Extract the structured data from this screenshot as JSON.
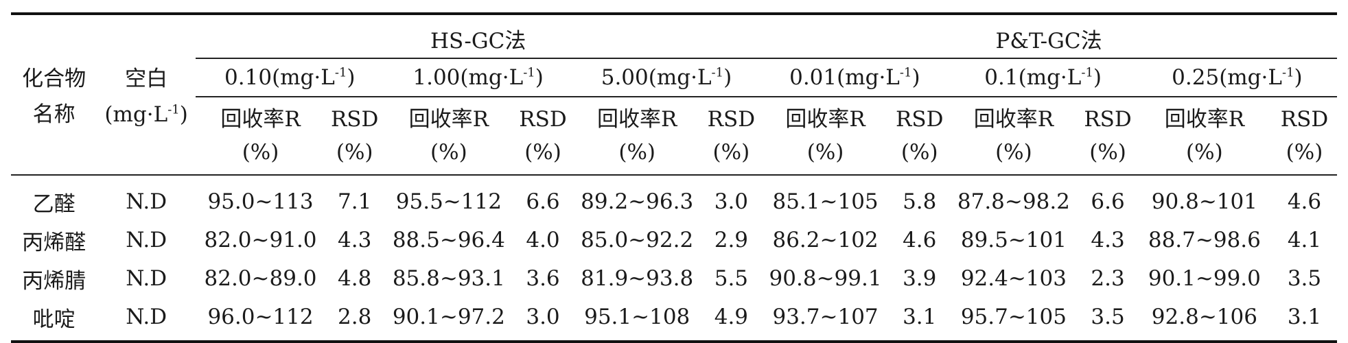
{
  "header": {
    "compound": [
      "化合物",
      "名称"
    ],
    "blank": [
      "空白",
      "(mg·L",
      "-1",
      ")"
    ],
    "groups": [
      "HS-GC法",
      "P&T-GC法"
    ],
    "concentrations": [
      {
        "value": "0.10(mg·L",
        "sup": "-1",
        "close": ")"
      },
      {
        "value": "1.00(mg·L",
        "sup": "-1",
        "close": ")"
      },
      {
        "value": "5.00(mg·L",
        "sup": "-1",
        "close": ")"
      },
      {
        "value": "0.01(mg·L",
        "sup": "-1",
        "close": ")"
      },
      {
        "value": "0.1(mg·L",
        "sup": "-1",
        "close": ")"
      },
      {
        "value": "0.25(mg·L",
        "sup": "-1",
        "close": ")"
      }
    ],
    "recovery": [
      "回收率R",
      "(%)"
    ],
    "rsd": [
      "RSD",
      "(%)"
    ]
  },
  "rows": [
    {
      "name": "乙醛",
      "blank": "N.D",
      "cells": [
        "95.0~113",
        "7.1",
        "95.5~112",
        "6.6",
        "89.2~96.3",
        "3.0",
        "85.1~105",
        "5.8",
        "87.8~98.2",
        "6.6",
        "90.8~101",
        "4.6"
      ]
    },
    {
      "name": "丙烯醛",
      "blank": "N.D",
      "cells": [
        "82.0~91.0",
        "4.3",
        "88.5~96.4",
        "4.0",
        "85.0~92.2",
        "2.9",
        "86.2~102",
        "4.6",
        "89.5~101",
        "4.3",
        "88.7~98.6",
        "4.1"
      ]
    },
    {
      "name": "丙烯腈",
      "blank": "N.D",
      "cells": [
        "82.0~89.0",
        "4.8",
        "85.8~93.1",
        "3.6",
        "81.9~93.8",
        "5.5",
        "90.8~99.1",
        "3.9",
        "92.4~103",
        "2.3",
        "90.1~99.0",
        "3.5"
      ]
    },
    {
      "name": "吡啶",
      "blank": "N.D",
      "cells": [
        "96.0~112",
        "2.8",
        "90.1~97.2",
        "3.0",
        "95.1~108",
        "4.9",
        "93.7~107",
        "3.1",
        "95.7~105",
        "3.5",
        "92.8~106",
        "3.1"
      ]
    }
  ]
}
